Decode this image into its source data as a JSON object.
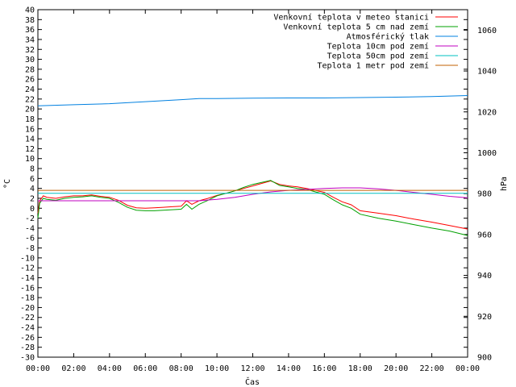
{
  "chart_data": {
    "type": "line",
    "xlabel": "Čas",
    "ylabel_left": "°C",
    "ylabel_right": "hPa",
    "x_ticks": [
      "00:00",
      "02:00",
      "04:00",
      "06:00",
      "08:00",
      "10:00",
      "12:00",
      "14:00",
      "16:00",
      "18:00",
      "20:00",
      "22:00",
      "00:00"
    ],
    "x_range_hours": [
      0,
      24
    ],
    "ylim_left": [
      -30,
      40
    ],
    "y_ticks_left": [
      40,
      38,
      36,
      34,
      32,
      30,
      28,
      26,
      24,
      22,
      20,
      18,
      16,
      14,
      12,
      10,
      8,
      6,
      4,
      2,
      0,
      -2,
      -4,
      -6,
      -8,
      -10,
      -12,
      -14,
      -16,
      -18,
      -20,
      -22,
      -24,
      -26,
      -28,
      -30
    ],
    "ylim_right": [
      900,
      1070
    ],
    "y_ticks_right": [
      1060,
      1040,
      1020,
      1000,
      980,
      960,
      940,
      920,
      900
    ],
    "grid": false,
    "legend_position": "top-right",
    "series": [
      {
        "name": "Venkovní teplota v meteo stanici",
        "color": "#ff0000",
        "axis": "left",
        "x": [
          0,
          0.1,
          0.3,
          0.5,
          1,
          1.5,
          2,
          2.5,
          3,
          3.5,
          4,
          4.5,
          5,
          5.5,
          6,
          6.5,
          7,
          7.5,
          8,
          8.3,
          8.6,
          9,
          9.5,
          10,
          10.5,
          11,
          11.5,
          12,
          12.5,
          13,
          13.5,
          14,
          14.5,
          15,
          15.5,
          16,
          16.5,
          17,
          17.5,
          18,
          19,
          20,
          21,
          22,
          23,
          24
        ],
        "y": [
          -1,
          1.5,
          2.5,
          2.2,
          2,
          2.3,
          2.5,
          2.5,
          2.7,
          2.4,
          2.2,
          1.6,
          0.6,
          0.1,
          0,
          0.1,
          0.2,
          0.3,
          0.4,
          1.5,
          0.8,
          1.5,
          2,
          2.6,
          3,
          3.5,
          4,
          4.5,
          5,
          5.5,
          4.8,
          4.5,
          4.3,
          4,
          3.6,
          3.2,
          2.2,
          1.3,
          0.7,
          -0.5,
          -1,
          -1.5,
          -2.2,
          -2.8,
          -3.5,
          -4.2
        ]
      },
      {
        "name": "Venkovní teplota 5 cm nad zemí",
        "color": "#00a000",
        "axis": "left",
        "x": [
          0,
          0.1,
          0.3,
          0.5,
          1,
          1.5,
          2,
          2.5,
          3,
          3.5,
          4,
          4.5,
          5,
          5.5,
          6,
          6.5,
          7,
          7.5,
          8,
          8.3,
          8.6,
          9,
          9.5,
          10,
          10.5,
          11,
          11.5,
          12,
          12.5,
          13,
          13.5,
          14,
          14.5,
          15,
          15.5,
          16,
          16.5,
          17,
          17.5,
          18,
          19,
          20,
          21,
          22,
          23,
          24
        ],
        "y": [
          -2,
          1,
          2,
          1.8,
          1.6,
          2,
          2.2,
          2.3,
          2.5,
          2.2,
          2,
          1.2,
          0.2,
          -0.4,
          -0.5,
          -0.5,
          -0.4,
          -0.3,
          -0.2,
          0.8,
          -0.2,
          0.8,
          1.6,
          2.5,
          3,
          3.5,
          4.2,
          4.8,
          5.2,
          5.6,
          4.6,
          4.3,
          4,
          3.8,
          3.3,
          2.8,
          1.7,
          0.7,
          0,
          -1.2,
          -2,
          -2.6,
          -3.3,
          -4,
          -4.6,
          -5.5
        ]
      },
      {
        "name": "Atmosférický tlak",
        "color": "#0080e0",
        "axis": "right",
        "x": [
          0,
          2,
          4,
          6,
          8,
          9,
          10,
          12,
          14,
          16,
          18,
          20,
          22,
          24
        ],
        "y": [
          1023,
          1023.5,
          1024,
          1025,
          1026,
          1026.5,
          1026.5,
          1026.7,
          1026.8,
          1026.8,
          1027,
          1027.2,
          1027.5,
          1028
        ]
      },
      {
        "name": "Teplota 10cm pod zemí",
        "color": "#c000c0",
        "axis": "left",
        "x": [
          0,
          1,
          3,
          5,
          7,
          9,
          10,
          11,
          12,
          13,
          14,
          15,
          16,
          17,
          18,
          19,
          20,
          21,
          22,
          23,
          24
        ],
        "y": [
          1.5,
          1.5,
          1.5,
          1.5,
          1.5,
          1.5,
          1.8,
          2.2,
          2.8,
          3.3,
          3.6,
          3.8,
          4,
          4.1,
          4.1,
          3.9,
          3.6,
          3.2,
          2.8,
          2.4,
          2.1
        ]
      },
      {
        "name": "Teplota 50cm pod zemí",
        "color": "#00c0c0",
        "axis": "left",
        "x": [
          0,
          24
        ],
        "y": [
          3,
          3
        ]
      },
      {
        "name": "Teplota 1 metr pod zemí",
        "color": "#c06000",
        "axis": "left",
        "x": [
          0,
          24
        ],
        "y": [
          3.6,
          3.6
        ]
      }
    ]
  }
}
